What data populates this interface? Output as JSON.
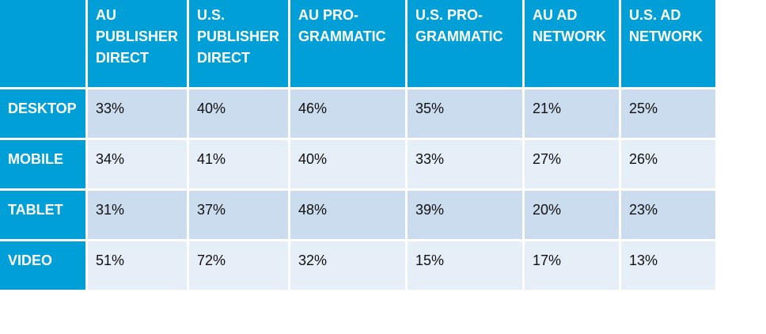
{
  "chart_data": {
    "type": "table",
    "title": "",
    "columns": [
      "AU PUBLISHER DIRECT",
      "U.S. PUBLISHER DIRECT",
      "AU PRO-GRAMMATIC",
      "U.S. PRO-GRAMMATIC",
      "AU AD NETWORK",
      "U.S. AD NETWORK"
    ],
    "column_lines": [
      [
        "AU",
        "PUBLISHER",
        "DIRECT"
      ],
      [
        "U.S.",
        "PUBLISHER",
        "DIRECT"
      ],
      [
        "AU PRO-",
        "GRAMMATIC"
      ],
      [
        "U.S. PRO-",
        "GRAMMATIC"
      ],
      [
        "AU AD",
        "NETWORK"
      ],
      [
        "U.S. AD",
        "NETWORK"
      ]
    ],
    "rows": [
      {
        "label": "DESKTOP",
        "values": [
          "33%",
          "40%",
          "46%",
          "35%",
          "21%",
          "25%"
        ]
      },
      {
        "label": "MOBILE",
        "values": [
          "34%",
          "41%",
          "40%",
          "33%",
          "27%",
          "26%"
        ]
      },
      {
        "label": "TABLET",
        "values": [
          "31%",
          "37%",
          "48%",
          "39%",
          "20%",
          "23%"
        ]
      },
      {
        "label": "VIDEO",
        "values": [
          "51%",
          "72%",
          "32%",
          "15%",
          "17%",
          "13%"
        ]
      }
    ],
    "colors": {
      "header_bg": "#009fd8",
      "header_text": "#ffffff",
      "band_odd": "#cbdcee",
      "band_even": "#e6eef8"
    }
  }
}
